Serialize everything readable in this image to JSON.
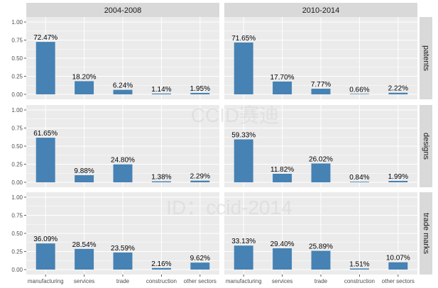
{
  "watermarks": [
    "CCID赛迪",
    "ID：ccid-2014"
  ],
  "colors": {
    "bar": "#4682b4",
    "panel_bg": "#ebebeb",
    "strip_bg": "#d9d9d9",
    "grid": "#ffffff"
  },
  "chart_data": {
    "type": "bar",
    "facet_columns": [
      "2004-2008",
      "2010-2014"
    ],
    "facet_rows": [
      "patents",
      "designs",
      "trade marks"
    ],
    "categories": [
      "manufacturing",
      "services",
      "trade",
      "construction",
      "other sectors"
    ],
    "y_ticks": [
      "0.00",
      "0.25",
      "0.50",
      "0.75",
      "1.00"
    ],
    "ylim": [
      0,
      1
    ],
    "grid": true,
    "panels": [
      {
        "column": "2004-2008",
        "row": "patents",
        "values": [
          0.7247,
          0.182,
          0.0624,
          0.0114,
          0.0195
        ],
        "labels": [
          "72.47%",
          "18.20%",
          "6.24%",
          "1.14%",
          "1.95%"
        ]
      },
      {
        "column": "2010-2014",
        "row": "patents",
        "values": [
          0.7165,
          0.177,
          0.0777,
          0.0066,
          0.0222
        ],
        "labels": [
          "71.65%",
          "17.70%",
          "7.77%",
          "0.66%",
          "2.22%"
        ]
      },
      {
        "column": "2004-2008",
        "row": "designs",
        "values": [
          0.6165,
          0.0988,
          0.248,
          0.0138,
          0.0229
        ],
        "labels": [
          "61.65%",
          "9.88%",
          "24.80%",
          "1.38%",
          "2.29%"
        ]
      },
      {
        "column": "2010-2014",
        "row": "designs",
        "values": [
          0.5933,
          0.1182,
          0.2602,
          0.0084,
          0.0199
        ],
        "labels": [
          "59.33%",
          "11.82%",
          "26.02%",
          "0.84%",
          "1.99%"
        ]
      },
      {
        "column": "2004-2008",
        "row": "trade marks",
        "values": [
          0.3609,
          0.2854,
          0.2359,
          0.0216,
          0.0962
        ],
        "labels": [
          "36.09%",
          "28.54%",
          "23.59%",
          "2.16%",
          "9.62%"
        ]
      },
      {
        "column": "2010-2014",
        "row": "trade marks",
        "values": [
          0.3313,
          0.294,
          0.2589,
          0.0151,
          0.1007
        ],
        "labels": [
          "33.13%",
          "29.40%",
          "25.89%",
          "1.51%",
          "10.07%"
        ]
      }
    ]
  }
}
